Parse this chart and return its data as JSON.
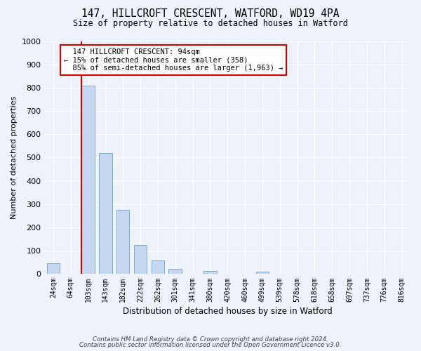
{
  "title": "147, HILLCROFT CRESCENT, WATFORD, WD19 4PA",
  "subtitle": "Size of property relative to detached houses in Watford",
  "xlabel": "Distribution of detached houses by size in Watford",
  "ylabel": "Number of detached properties",
  "bar_labels": [
    "24sqm",
    "64sqm",
    "103sqm",
    "143sqm",
    "182sqm",
    "222sqm",
    "262sqm",
    "301sqm",
    "341sqm",
    "380sqm",
    "420sqm",
    "460sqm",
    "499sqm",
    "539sqm",
    "578sqm",
    "618sqm",
    "658sqm",
    "697sqm",
    "737sqm",
    "776sqm",
    "816sqm"
  ],
  "bar_values": [
    46,
    0,
    810,
    520,
    275,
    125,
    58,
    22,
    0,
    13,
    0,
    0,
    8,
    0,
    0,
    0,
    0,
    0,
    0,
    0,
    0
  ],
  "bar_color": "#c5d8f0",
  "bar_edge_color": "#7aabcf",
  "vline_color": "#cc0000",
  "annotation_text": "  147 HILLCROFT CRESCENT: 94sqm\n← 15% of detached houses are smaller (358)\n  85% of semi-detached houses are larger (1,963) →",
  "annotation_box_color": "white",
  "annotation_box_edge_color": "#cc0000",
  "ylim": [
    0,
    1000
  ],
  "yticks": [
    0,
    100,
    200,
    300,
    400,
    500,
    600,
    700,
    800,
    900,
    1000
  ],
  "footnote1": "Contains HM Land Registry data © Crown copyright and database right 2024.",
  "footnote2": "Contains public sector information licensed under the Open Government Licence v3.0.",
  "background_color": "#eef2fb",
  "grid_color": "white",
  "title_fontsize": 10.5,
  "subtitle_fontsize": 8.5
}
